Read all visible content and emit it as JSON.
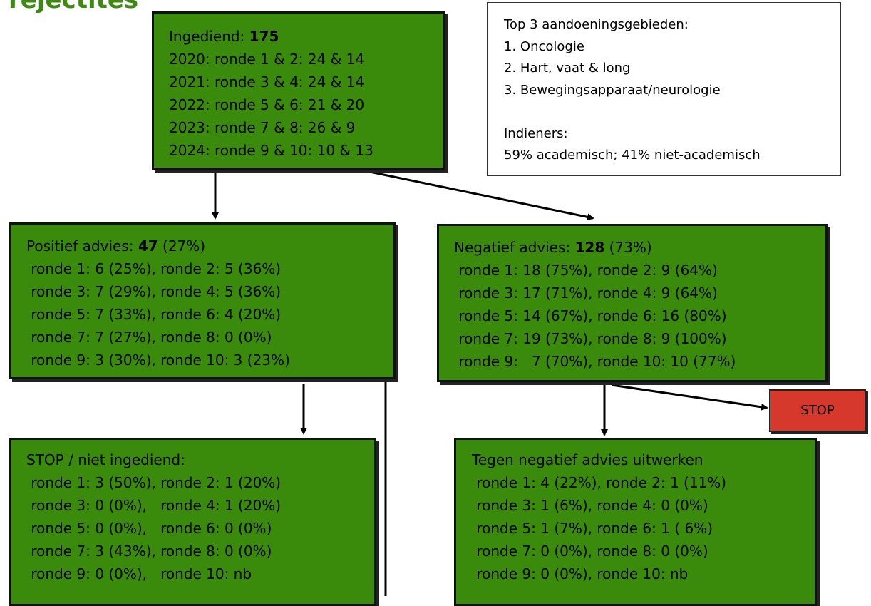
{
  "title": "rejectites",
  "submitted": {
    "label": "Ingediend:",
    "total": "175",
    "lines": [
      "2020: ronde 1 & 2: 24 & 14",
      "2021: ronde 3 & 4: 24 & 14",
      "2022: ronde 5 & 6: 21 & 20",
      "2023: ronde 7 & 8: 26 & 9",
      "2024: ronde 9 & 10: 10 & 13"
    ]
  },
  "info": {
    "lines": [
      "Top 3 aandoeningsgebieden:",
      "1. Oncologie",
      "2. Hart, vaat & long",
      "3. Bewegingsapparaat/neurologie",
      "",
      "Indieners:",
      "59% academisch; 41% niet-academisch"
    ]
  },
  "positive": {
    "label": "Positief advies:",
    "total": "47",
    "pct": "(27%)",
    "lines": [
      " ronde 1: 6 (25%), ronde 2: 5 (36%)",
      " ronde 3: 7 (29%), ronde 4: 5 (36%)",
      " ronde 5: 7 (33%), ronde 6: 4 (20%)",
      " ronde 7: 7 (27%), ronde 8: 0 (0%)",
      " ronde 9: 3 (30%), ronde 10: 3 (23%)"
    ]
  },
  "negative": {
    "label": "Negatief advies:",
    "total": "128",
    "pct": "(73%)",
    "lines": [
      " ronde 1: 18 (75%), ronde 2: 9 (64%)",
      " ronde 3: 17 (71%), ronde 4: 9 (64%)",
      " ronde 5: 14 (67%), ronde 6: 16 (80%)",
      " ronde 7: 19 (73%), ronde 8: 9 (100%)",
      " ronde 9:   7 (70%), ronde 10: 10 (77%)"
    ]
  },
  "stop_not_submitted": {
    "lines": [
      "STOP / niet ingediend:",
      " ronde 1: 3 (50%), ronde 2: 1 (20%)",
      " ronde 3: 0 (0%),   ronde 4: 1 (20%)",
      " ronde 5: 0 (0%),   ronde 6: 0 (0%)",
      " ronde 7: 3 (43%), ronde 8: 0 (0%)",
      " ronde 9: 0 (0%),   ronde 10: nb"
    ]
  },
  "counter": {
    "lines": [
      "Tegen negatief advies uitwerken",
      " ronde 1: 4 (22%), ronde 2: 1 (11%)",
      " ronde 3: 1 (6%), ronde 4: 0 (0%)",
      " ronde 5: 1 (7%), ronde 6: 1 ( 6%)",
      " ronde 7: 0 (0%), ronde 8: 0 (0%)",
      " ronde 9: 0 (0%), ronde 10: nb"
    ]
  },
  "stop_button": {
    "label": "STOP"
  },
  "colors": {
    "box_fill": "#3a8a0c",
    "stop_fill": "#d7382c",
    "title": "#3c8a10"
  }
}
